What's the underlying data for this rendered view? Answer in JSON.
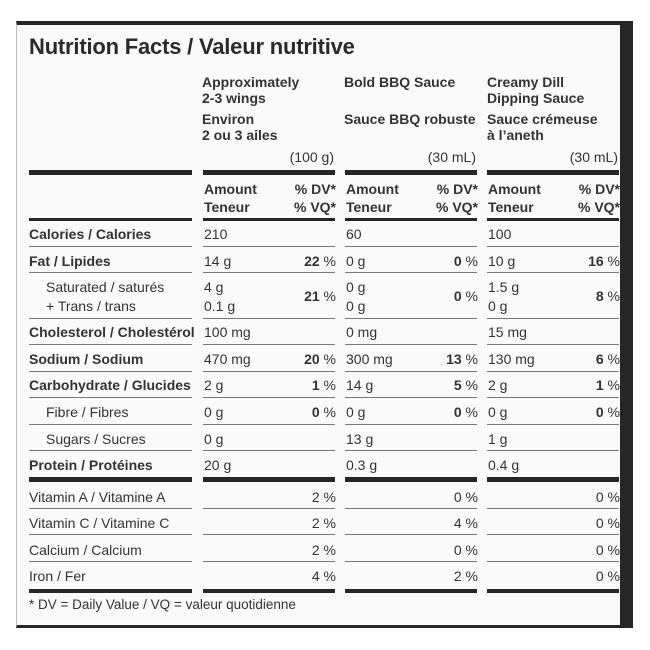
{
  "title": "Nutrition Facts / Valeur nutritive",
  "columns": [
    {
      "name_en_1": "Approximately",
      "name_en_2": "2-3 wings",
      "name_fr_1": "Environ",
      "name_fr_2": "2 ou 3 ailes",
      "serving": "(100 g)"
    },
    {
      "name_en_1": "Bold BBQ Sauce",
      "name_en_2": "",
      "name_fr_1": "Sauce BBQ robuste",
      "name_fr_2": "",
      "serving": "(30 mL)"
    },
    {
      "name_en_1": "Creamy Dill",
      "name_en_2": "Dipping Sauce",
      "name_fr_1": "Sauce crémeuse",
      "name_fr_2": "à l’aneth",
      "serving": "(30 mL)"
    }
  ],
  "header": {
    "amount": "Amount",
    "teneur": "Teneur",
    "dv": "% DV*",
    "vq": "% VQ*"
  },
  "rows": {
    "calories": {
      "label": "Calories / Calories",
      "c1": "210",
      "c2": "60",
      "c3": "100"
    },
    "fat": {
      "label": "Fat / Lipides",
      "c1": "14 g",
      "c1pct": "22",
      "c2": "0 g",
      "c2pct": "0",
      "c3": "10 g",
      "c3pct": "16"
    },
    "satfat": {
      "label1": "Saturated / saturés",
      "label2": "+ Trans / trans",
      "c1a": "4 g",
      "c1b": "0.1 g",
      "c1pct": "21",
      "c2a": "0 g",
      "c2b": "0 g",
      "c2pct": "0",
      "c3a": "1.5 g",
      "c3b": "0 g",
      "c3pct": "8"
    },
    "cholesterol": {
      "label": "Cholesterol / Cholestérol",
      "c1": "100 mg",
      "c2": "0 mg",
      "c3": "15 mg"
    },
    "sodium": {
      "label": "Sodium / Sodium",
      "c1": "470 mg",
      "c1pct": "20",
      "c2": "300 mg",
      "c2pct": "13",
      "c3": "130 mg",
      "c3pct": "6"
    },
    "carb": {
      "label": "Carbohydrate / Glucides",
      "c1": "2 g",
      "c1pct": "1",
      "c2": "14 g",
      "c2pct": "5",
      "c3": "2 g",
      "c3pct": "1"
    },
    "fibre": {
      "label": "Fibre / Fibres",
      "c1": "0 g",
      "c1pct": "0",
      "c2": "0 g",
      "c2pct": "0",
      "c3": "0 g",
      "c3pct": "0"
    },
    "sugars": {
      "label": "Sugars / Sucres",
      "c1": "0 g",
      "c2": "13 g",
      "c3": "1 g"
    },
    "protein": {
      "label": "Protein / Protéines",
      "c1": "20 g",
      "c2": "0.3 g",
      "c3": "0.4 g"
    },
    "vita": {
      "label": "Vitamin A / Vitamine A",
      "c1": "2 %",
      "c2": "0 %",
      "c3": "0 %"
    },
    "vitc": {
      "label": "Vitamin C / Vitamine C",
      "c1": "2 %",
      "c2": "4 %",
      "c3": "0 %"
    },
    "calcium": {
      "label": "Calcium / Calcium",
      "c1": "2 %",
      "c2": "0 %",
      "c3": "0 %"
    },
    "iron": {
      "label": "Iron / Fer",
      "c1": "4 %",
      "c2": "2 %",
      "c3": "0 %"
    }
  },
  "pct_symbol": "%",
  "footnote": "* DV = Daily Value / VQ = valeur quotidienne"
}
